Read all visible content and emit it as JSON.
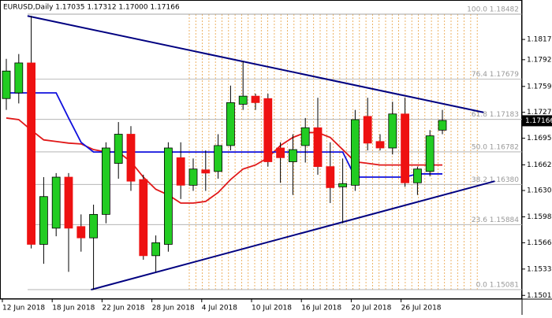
{
  "chart_data": {
    "type": "candlestick",
    "title": "EURUSD,Daily  1.17035 1.17312 1.17000 1.17166",
    "categories": [
      "12 Jun 2018",
      null,
      null,
      null,
      "18 Jun 2018",
      null,
      null,
      null,
      "22 Jun 2018",
      null,
      null,
      null,
      "28 Jun 2018",
      null,
      null,
      null,
      "4 Jul 2018",
      null,
      null,
      null,
      "10 Jul 2018",
      null,
      null,
      null,
      "16 Jul 2018",
      null,
      null,
      null,
      "20 Jul 2018",
      null,
      null,
      null,
      "26 Jul 2018",
      null,
      null,
      null
    ],
    "open": [
      1.1744,
      1.1751,
      1.1788,
      1.1564,
      1.1584,
      1.1647,
      1.1586,
      1.1572,
      1.1601,
      1.1664,
      1.17,
      1.1644,
      1.155,
      1.1564,
      1.1671,
      1.1637,
      1.1656,
      1.1654,
      1.1686,
      1.1737,
      1.1747,
      1.1744,
      1.1683,
      1.1666,
      1.1686,
      1.1708,
      1.166,
      1.1635,
      1.1637,
      1.1722,
      1.1691,
      1.1683,
      1.1725,
      1.164,
      1.1654,
      1.1705
    ],
    "high": [
      1.1793,
      1.1799,
      1.1846,
      1.1647,
      1.1652,
      1.1652,
      1.1601,
      1.1613,
      1.169,
      1.1715,
      1.171,
      1.165,
      1.1575,
      1.169,
      1.169,
      1.167,
      1.168,
      1.17,
      1.176,
      1.179,
      1.175,
      1.175,
      1.169,
      1.17,
      1.172,
      1.1745,
      1.169,
      1.167,
      1.173,
      1.1745,
      1.17,
      1.174,
      1.1745,
      1.166,
      1.1705,
      1.173
    ],
    "low": [
      1.173,
      1.1738,
      1.1559,
      1.154,
      1.1574,
      1.153,
      1.1555,
      1.1508,
      1.159,
      1.1645,
      1.163,
      1.1545,
      1.153,
      1.1555,
      1.162,
      1.163,
      1.163,
      1.1645,
      1.168,
      1.173,
      1.173,
      1.166,
      1.164,
      1.1625,
      1.1665,
      1.165,
      1.1615,
      1.159,
      1.163,
      1.168,
      1.168,
      1.1675,
      1.1635,
      1.1625,
      1.1648,
      1.17
    ],
    "close": [
      1.1778,
      1.1788,
      1.1564,
      1.1623,
      1.1647,
      1.1584,
      1.1572,
      1.1601,
      1.1683,
      1.17,
      1.1642,
      1.155,
      1.1566,
      1.1683,
      1.1637,
      1.1657,
      1.1652,
      1.1686,
      1.1739,
      1.1747,
      1.1739,
      1.1666,
      1.1671,
      1.1681,
      1.1708,
      1.166,
      1.1634,
      1.1639,
      1.1718,
      1.1689,
      1.1683,
      1.1725,
      1.164,
      1.1657,
      1.1698,
      1.1717
    ],
    "up_color": "#22cc22",
    "down_color": "#ee1111",
    "overlays": [
      {
        "color": "#e01818",
        "values": [
          1.172,
          1.1718,
          1.1705,
          1.1693,
          1.1691,
          1.1689,
          1.1688,
          1.1681,
          1.1678,
          1.1678,
          1.1666,
          1.1647,
          1.1632,
          1.1625,
          1.1615,
          1.1615,
          1.1617,
          1.1628,
          1.1644,
          1.1657,
          1.1662,
          1.1671,
          1.1686,
          1.1696,
          1.1702,
          1.1702,
          1.1696,
          1.1681,
          1.1666,
          1.1664,
          1.1662,
          1.1662,
          1.1662,
          1.1662,
          1.1662,
          1.1662
        ]
      },
      {
        "color": "#1010dd",
        "values": [
          1.1751,
          1.1751,
          1.1751,
          1.1751,
          1.1751,
          1.172,
          1.169,
          1.1678,
          1.1678,
          1.1678,
          1.1678,
          1.1678,
          1.1678,
          1.1678,
          1.1678,
          1.1678,
          1.1678,
          1.1678,
          1.1678,
          1.1678,
          1.1678,
          1.1678,
          1.1678,
          1.1678,
          1.1678,
          1.1678,
          1.1678,
          1.1678,
          1.1647,
          1.1647,
          1.1647,
          1.1647,
          1.1647,
          1.1651,
          1.1651,
          1.1651
        ]
      }
    ],
    "trendlines": [
      {
        "color": "#000080",
        "x": [
          1.7,
          38.3
        ],
        "y": [
          1.1846,
          1.1727
        ]
      },
      {
        "color": "#000080",
        "x": [
          6.8,
          39.2
        ],
        "y": [
          1.1508,
          1.1642
        ]
      }
    ],
    "fib_levels": [
      {
        "value": 1.18482,
        "label": "100.0 1.18482"
      },
      {
        "value": 1.17679,
        "label": "76.4 1.17679"
      },
      {
        "value": 1.17183,
        "label": "61.8 1.17183"
      },
      {
        "value": 1.16782,
        "label": "50.0 1.16782"
      },
      {
        "value": 1.1638,
        "label": "38.2 1.16380"
      },
      {
        "value": 1.15884,
        "label": "23.6 1.15884"
      },
      {
        "value": 1.15081,
        "label": "0.0 1.15081"
      }
    ],
    "last_price": 1.17166,
    "ylim": [
      1.14964,
      1.18657
    ],
    "yticks": [
      {
        "value": 1.1817,
        "label": "1.18170"
      },
      {
        "value": 1.1792,
        "label": "1.17920"
      },
      {
        "value": 1.1759,
        "label": "1.17590"
      },
      {
        "value": 1.1727,
        "label": "1.17270"
      },
      {
        "value": 1.1695,
        "label": "1.16950"
      },
      1.16622,
      1.16305,
      {
        "value": 1.1598,
        "label": "1.15980"
      },
      {
        "value": 1.1566,
        "label": "1.15660"
      },
      1.15335,
      {
        "value": 1.1501,
        "label": "1.15010"
      }
    ]
  }
}
